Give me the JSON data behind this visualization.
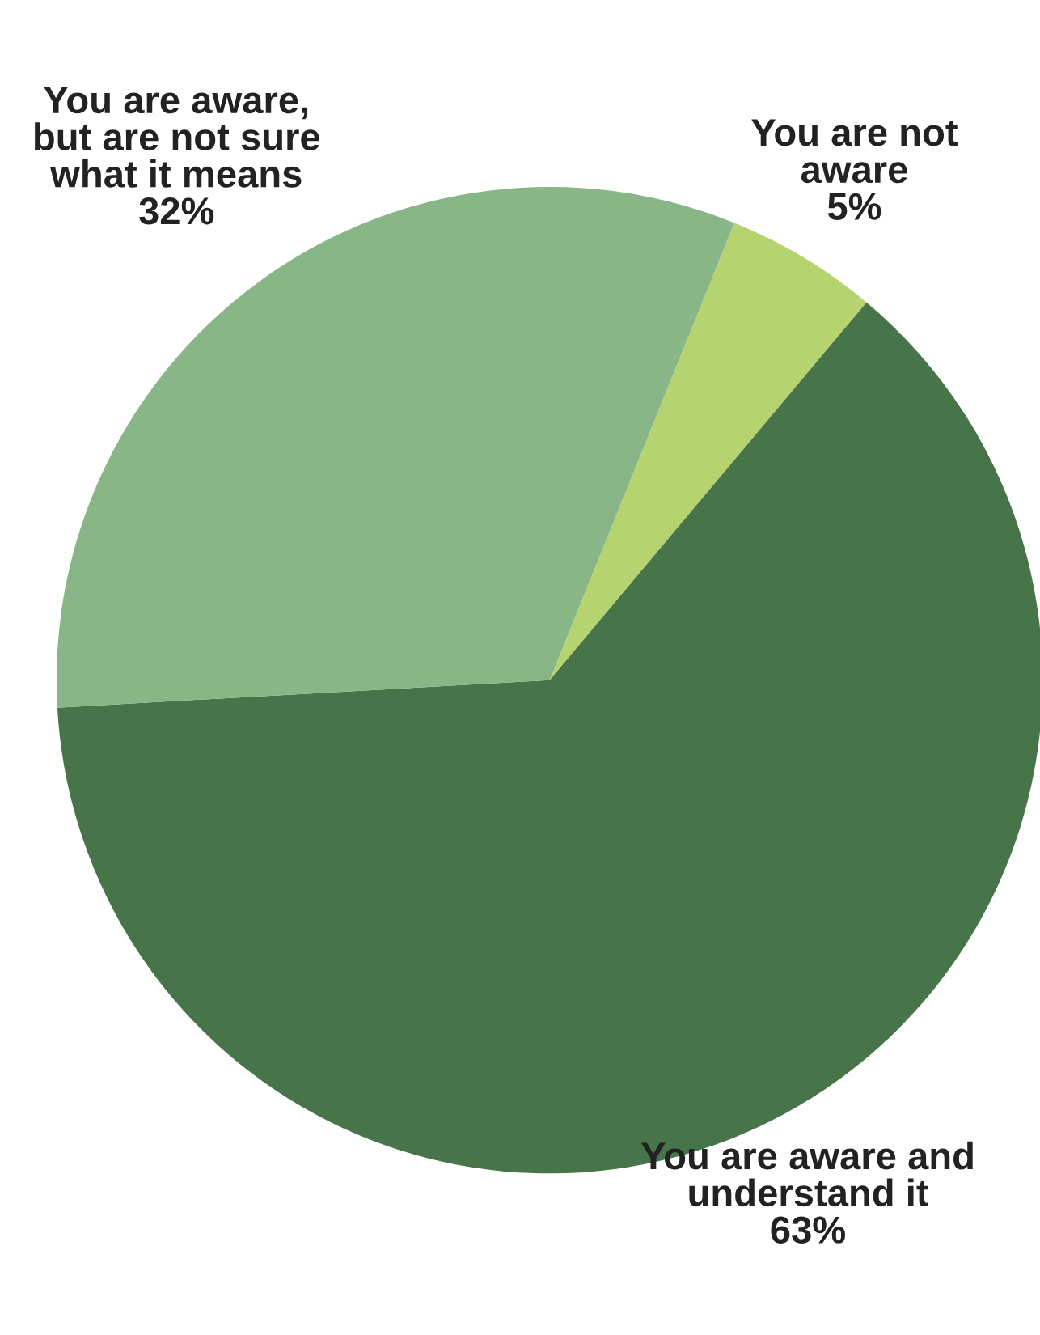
{
  "chart_data": {
    "type": "pie",
    "categories": [
      "You are not\naware",
      "You are aware and\nunderstand it",
      "You are aware,\nbut are not sure\nwhat it means"
    ],
    "values": [
      5,
      63,
      32
    ],
    "colors": [
      "#b5d36e",
      "#48744a",
      "#88b686"
    ],
    "value_labels": [
      "5%",
      "63%",
      "32%"
    ],
    "legend": false
  }
}
